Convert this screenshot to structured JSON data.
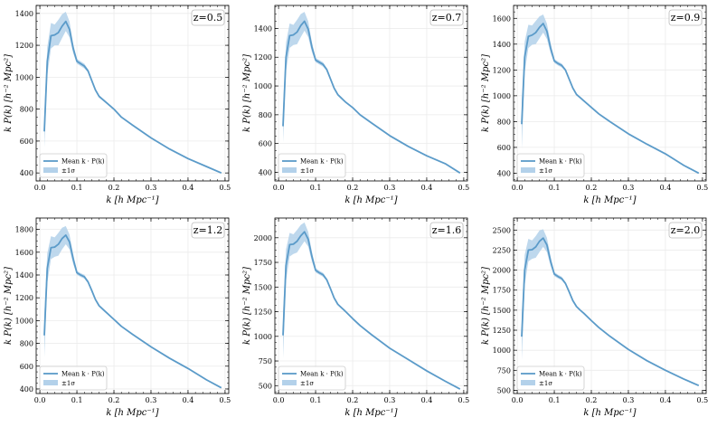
{
  "chart_data": [
    {
      "type": "line",
      "annotation": "z=0.5",
      "xlabel": "k [h Mpc⁻¹]",
      "ylabel": "k P(k) [h⁻² Mpc²]",
      "xlim": [
        -0.01,
        0.51
      ],
      "ylim": [
        350,
        1450
      ],
      "xticks": [
        0.0,
        0.1,
        0.2,
        0.3,
        0.4,
        0.5
      ],
      "xtick_labels": [
        "0.0",
        "0.1",
        "0.2",
        "0.3",
        "0.4",
        "0.5"
      ],
      "yticks": [
        400,
        600,
        800,
        1000,
        1200,
        1400
      ],
      "ytick_labels": [
        "400",
        "600",
        "800",
        "1000",
        "1200",
        "1400"
      ],
      "legend": [
        "Mean k · P(k)",
        "±1σ"
      ],
      "legend_position": "lower-left",
      "series": [
        {
          "name": "Mean k · P(k)",
          "x": [
            0.012,
            0.02,
            0.03,
            0.04,
            0.05,
            0.06,
            0.07,
            0.08,
            0.09,
            0.1,
            0.11,
            0.12,
            0.13,
            0.14,
            0.15,
            0.16,
            0.17,
            0.18,
            0.2,
            0.22,
            0.25,
            0.3,
            0.35,
            0.4,
            0.45,
            0.49
          ],
          "y": [
            660,
            1100,
            1260,
            1265,
            1280,
            1320,
            1350,
            1300,
            1180,
            1100,
            1085,
            1070,
            1040,
            980,
            920,
            880,
            860,
            840,
            800,
            750,
            700,
            620,
            550,
            490,
            440,
            400
          ],
          "band_low": [
            560,
            1010,
            1180,
            1200,
            1200,
            1245,
            1290,
            1250,
            1150,
            1085,
            1070,
            1055,
            1030,
            970,
            912,
            872,
            853,
            834,
            795,
            746,
            697,
            618,
            548,
            489,
            439,
            399
          ],
          "band_high": [
            760,
            1190,
            1340,
            1330,
            1360,
            1395,
            1410,
            1350,
            1210,
            1115,
            1100,
            1085,
            1050,
            990,
            928,
            888,
            867,
            846,
            805,
            754,
            703,
            622,
            552,
            491,
            441,
            401
          ]
        }
      ]
    },
    {
      "type": "line",
      "annotation": "z=0.7",
      "xlabel": "k [h Mpc⁻¹]",
      "ylabel": "k P(k) [h⁻² Mpc²]",
      "xlim": [
        -0.01,
        0.51
      ],
      "ylim": [
        340,
        1560
      ],
      "xticks": [
        0.0,
        0.1,
        0.2,
        0.3,
        0.4,
        0.5
      ],
      "xtick_labels": [
        "0.0",
        "0.1",
        "0.2",
        "0.3",
        "0.4",
        "0.5"
      ],
      "yticks": [
        400,
        600,
        800,
        1000,
        1200,
        1400
      ],
      "ytick_labels": [
        "400",
        "600",
        "800",
        "1000",
        "1200",
        "1400"
      ],
      "legend": [
        "Mean k · P(k)",
        "±1σ"
      ],
      "legend_position": "lower-left",
      "series": [
        {
          "name": "Mean k · P(k)",
          "x": [
            0.012,
            0.02,
            0.03,
            0.04,
            0.05,
            0.06,
            0.07,
            0.08,
            0.09,
            0.1,
            0.11,
            0.12,
            0.13,
            0.14,
            0.15,
            0.16,
            0.17,
            0.18,
            0.2,
            0.22,
            0.25,
            0.3,
            0.35,
            0.4,
            0.45,
            0.49
          ],
          "y": [
            720,
            1200,
            1350,
            1355,
            1375,
            1420,
            1450,
            1395,
            1270,
            1180,
            1165,
            1150,
            1115,
            1050,
            985,
            940,
            915,
            890,
            850,
            800,
            745,
            655,
            580,
            515,
            460,
            395
          ],
          "band_low": [
            610,
            1100,
            1265,
            1285,
            1290,
            1340,
            1385,
            1340,
            1235,
            1165,
            1150,
            1135,
            1105,
            1040,
            977,
            932,
            908,
            884,
            845,
            796,
            742,
            653,
            578,
            514,
            459,
            394
          ],
          "band_high": [
            830,
            1300,
            1435,
            1425,
            1460,
            1500,
            1515,
            1450,
            1305,
            1195,
            1180,
            1165,
            1125,
            1060,
            993,
            948,
            922,
            896,
            855,
            804,
            748,
            657,
            582,
            516,
            461,
            396
          ]
        }
      ]
    },
    {
      "type": "line",
      "annotation": "z=0.9",
      "xlabel": "k [h Mpc⁻¹]",
      "ylabel": "k P(k) [h⁻² Mpc²]",
      "xlim": [
        -0.01,
        0.51
      ],
      "ylim": [
        340,
        1700
      ],
      "xticks": [
        0.0,
        0.1,
        0.2,
        0.3,
        0.4,
        0.5
      ],
      "xtick_labels": [
        "0.0",
        "0.1",
        "0.2",
        "0.3",
        "0.4",
        "0.5"
      ],
      "yticks": [
        400,
        600,
        800,
        1000,
        1200,
        1400,
        1600
      ],
      "ytick_labels": [
        "400",
        "600",
        "800",
        "1000",
        "1200",
        "1400",
        "1600"
      ],
      "legend": [
        "Mean k · P(k)",
        "±1σ"
      ],
      "legend_position": "lower-left",
      "series": [
        {
          "name": "Mean k · P(k)",
          "x": [
            0.012,
            0.02,
            0.03,
            0.04,
            0.05,
            0.06,
            0.07,
            0.08,
            0.09,
            0.1,
            0.11,
            0.12,
            0.13,
            0.14,
            0.15,
            0.16,
            0.17,
            0.18,
            0.2,
            0.22,
            0.25,
            0.3,
            0.35,
            0.4,
            0.45,
            0.49
          ],
          "y": [
            780,
            1300,
            1460,
            1470,
            1490,
            1530,
            1560,
            1500,
            1370,
            1270,
            1250,
            1235,
            1200,
            1130,
            1060,
            1010,
            985,
            960,
            910,
            860,
            800,
            705,
            625,
            550,
            460,
            400
          ],
          "band_low": [
            590,
            1180,
            1370,
            1395,
            1400,
            1445,
            1490,
            1440,
            1330,
            1255,
            1235,
            1220,
            1190,
            1120,
            1052,
            1002,
            978,
            954,
            905,
            856,
            797,
            703,
            623,
            549,
            459,
            399
          ],
          "band_high": [
            970,
            1420,
            1550,
            1545,
            1580,
            1615,
            1630,
            1560,
            1410,
            1285,
            1265,
            1250,
            1210,
            1140,
            1068,
            1018,
            992,
            966,
            915,
            864,
            803,
            707,
            627,
            551,
            461,
            401
          ]
        }
      ]
    },
    {
      "type": "line",
      "annotation": "z=1.2",
      "xlabel": "k [h Mpc⁻¹]",
      "ylabel": "k P(k) [h⁻² Mpc²]",
      "xlim": [
        -0.01,
        0.51
      ],
      "ylim": [
        360,
        1900
      ],
      "xticks": [
        0.0,
        0.1,
        0.2,
        0.3,
        0.4,
        0.5
      ],
      "xtick_labels": [
        "0.0",
        "0.1",
        "0.2",
        "0.3",
        "0.4",
        "0.5"
      ],
      "yticks": [
        400,
        600,
        800,
        1000,
        1200,
        1400,
        1600,
        1800
      ],
      "ytick_labels": [
        "400",
        "600",
        "800",
        "1000",
        "1200",
        "1400",
        "1600",
        "1800"
      ],
      "legend": [
        "Mean k · P(k)",
        "±1σ"
      ],
      "legend_position": "lower-left",
      "series": [
        {
          "name": "Mean k · P(k)",
          "x": [
            0.012,
            0.02,
            0.03,
            0.04,
            0.05,
            0.06,
            0.07,
            0.08,
            0.09,
            0.1,
            0.11,
            0.12,
            0.13,
            0.14,
            0.15,
            0.16,
            0.17,
            0.18,
            0.2,
            0.22,
            0.25,
            0.3,
            0.35,
            0.4,
            0.45,
            0.49
          ],
          "y": [
            870,
            1460,
            1640,
            1645,
            1670,
            1720,
            1750,
            1690,
            1540,
            1420,
            1400,
            1385,
            1340,
            1265,
            1185,
            1130,
            1100,
            1070,
            1010,
            950,
            880,
            770,
            670,
            580,
            480,
            410
          ],
          "band_low": [
            680,
            1330,
            1540,
            1560,
            1570,
            1625,
            1670,
            1625,
            1495,
            1402,
            1383,
            1368,
            1328,
            1253,
            1176,
            1121,
            1092,
            1063,
            1004,
            945,
            876,
            768,
            668,
            579,
            479,
            409
          ],
          "band_high": [
            1060,
            1590,
            1740,
            1730,
            1770,
            1815,
            1830,
            1755,
            1585,
            1438,
            1417,
            1402,
            1352,
            1277,
            1194,
            1139,
            1108,
            1077,
            1016,
            955,
            884,
            772,
            672,
            581,
            481,
            411
          ]
        }
      ]
    },
    {
      "type": "line",
      "annotation": "z=1.6",
      "xlabel": "k [h Mpc⁻¹]",
      "ylabel": "k P(k) [h⁻² Mpc²]",
      "xlim": [
        -0.01,
        0.51
      ],
      "ylim": [
        420,
        2200
      ],
      "xticks": [
        0.0,
        0.1,
        0.2,
        0.3,
        0.4,
        0.5
      ],
      "xtick_labels": [
        "0.0",
        "0.1",
        "0.2",
        "0.3",
        "0.4",
        "0.5"
      ],
      "yticks": [
        500,
        750,
        1000,
        1250,
        1500,
        1750,
        2000
      ],
      "ytick_labels": [
        "500",
        "750",
        "1000",
        "1250",
        "1500",
        "1750",
        "2000"
      ],
      "legend": [
        "Mean k · P(k)",
        "±1σ"
      ],
      "legend_position": "lower-left",
      "series": [
        {
          "name": "Mean k · P(k)",
          "x": [
            0.012,
            0.02,
            0.03,
            0.04,
            0.05,
            0.06,
            0.07,
            0.08,
            0.09,
            0.1,
            0.11,
            0.12,
            0.13,
            0.14,
            0.15,
            0.16,
            0.17,
            0.18,
            0.2,
            0.22,
            0.25,
            0.3,
            0.35,
            0.4,
            0.45,
            0.49
          ],
          "y": [
            1010,
            1720,
            1930,
            1935,
            1965,
            2020,
            2060,
            1985,
            1810,
            1670,
            1645,
            1625,
            1575,
            1485,
            1390,
            1325,
            1290,
            1255,
            1180,
            1110,
            1020,
            880,
            765,
            650,
            545,
            465
          ],
          "band_low": [
            780,
            1560,
            1810,
            1835,
            1850,
            1910,
            1965,
            1910,
            1760,
            1648,
            1625,
            1605,
            1560,
            1470,
            1380,
            1315,
            1281,
            1247,
            1173,
            1104,
            1015,
            877,
            763,
            649,
            544,
            464
          ],
          "band_high": [
            1240,
            1880,
            2050,
            2035,
            2080,
            2130,
            2155,
            2060,
            1860,
            1692,
            1665,
            1645,
            1590,
            1500,
            1400,
            1335,
            1299,
            1263,
            1187,
            1116,
            1025,
            883,
            767,
            651,
            546,
            466
          ]
        }
      ]
    },
    {
      "type": "line",
      "annotation": "z=2.0",
      "xlabel": "k [h Mpc⁻¹]",
      "ylabel": "k P(k) [h⁻² Mpc²]",
      "xlim": [
        -0.01,
        0.51
      ],
      "ylim": [
        460,
        2650
      ],
      "xticks": [
        0.0,
        0.1,
        0.2,
        0.3,
        0.4,
        0.5
      ],
      "xtick_labels": [
        "0.0",
        "0.1",
        "0.2",
        "0.3",
        "0.4",
        "0.5"
      ],
      "yticks": [
        500,
        750,
        1000,
        1250,
        1500,
        1750,
        2000,
        2250,
        2500
      ],
      "ytick_labels": [
        "500",
        "750",
        "1000",
        "1250",
        "1500",
        "1750",
        "2000",
        "2250",
        "2500"
      ],
      "legend": [
        "Mean k · P(k)",
        "±1σ"
      ],
      "legend_position": "lower-left",
      "series": [
        {
          "name": "Mean k · P(k)",
          "x": [
            0.012,
            0.02,
            0.03,
            0.04,
            0.05,
            0.06,
            0.07,
            0.08,
            0.09,
            0.1,
            0.11,
            0.12,
            0.13,
            0.14,
            0.15,
            0.16,
            0.17,
            0.18,
            0.2,
            0.22,
            0.25,
            0.3,
            0.35,
            0.4,
            0.45,
            0.49
          ],
          "y": [
            1170,
            2000,
            2250,
            2255,
            2290,
            2360,
            2400,
            2315,
            2110,
            1950,
            1920,
            1895,
            1835,
            1730,
            1620,
            1545,
            1500,
            1460,
            1370,
            1285,
            1175,
            1010,
            870,
            750,
            640,
            560
          ],
          "band_low": [
            880,
            1810,
            2110,
            2140,
            2155,
            2225,
            2290,
            2225,
            2050,
            1925,
            1897,
            1872,
            1818,
            1713,
            1608,
            1534,
            1490,
            1451,
            1362,
            1278,
            1170,
            1007,
            868,
            749,
            639,
            559
          ],
          "band_high": [
            1460,
            2190,
            2390,
            2370,
            2425,
            2495,
            2510,
            2405,
            2170,
            1975,
            1943,
            1918,
            1852,
            1747,
            1632,
            1556,
            1510,
            1469,
            1378,
            1292,
            1180,
            1013,
            872,
            751,
            641,
            561
          ]
        }
      ]
    }
  ]
}
